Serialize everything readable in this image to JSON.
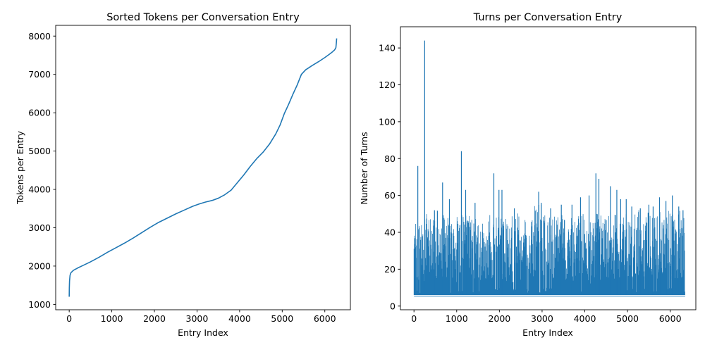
{
  "figure": {
    "background": "#ffffff",
    "line_color": "#1f77b4"
  },
  "chart_data": [
    {
      "type": "line",
      "title": "Sorted Tokens per Conversation Entry",
      "xlabel": "Entry Index",
      "ylabel": "Tokens per Entry",
      "xlim": [
        -317,
        6600
      ],
      "ylim": [
        860,
        8280
      ],
      "xticks": [
        0,
        1000,
        2000,
        3000,
        4000,
        5000,
        6000
      ],
      "yticks": [
        1000,
        2000,
        3000,
        4000,
        5000,
        6000,
        7000,
        8000
      ],
      "grid": false,
      "legend": null,
      "line_color": "#1f77b4",
      "points": [
        [
          0,
          1200
        ],
        [
          3,
          1430
        ],
        [
          8,
          1610
        ],
        [
          20,
          1760
        ],
        [
          40,
          1825
        ],
        [
          100,
          1890
        ],
        [
          200,
          1950
        ],
        [
          350,
          2030
        ],
        [
          500,
          2110
        ],
        [
          700,
          2230
        ],
        [
          900,
          2360
        ],
        [
          1100,
          2480
        ],
        [
          1300,
          2600
        ],
        [
          1500,
          2730
        ],
        [
          1700,
          2870
        ],
        [
          1900,
          3010
        ],
        [
          2100,
          3140
        ],
        [
          2300,
          3250
        ],
        [
          2500,
          3360
        ],
        [
          2700,
          3460
        ],
        [
          2900,
          3560
        ],
        [
          3050,
          3620
        ],
        [
          3200,
          3670
        ],
        [
          3350,
          3710
        ],
        [
          3500,
          3770
        ],
        [
          3650,
          3860
        ],
        [
          3800,
          3980
        ],
        [
          3950,
          4180
        ],
        [
          4100,
          4380
        ],
        [
          4250,
          4600
        ],
        [
          4400,
          4800
        ],
        [
          4550,
          4970
        ],
        [
          4700,
          5180
        ],
        [
          4850,
          5450
        ],
        [
          4950,
          5680
        ],
        [
          5050,
          5980
        ],
        [
          5150,
          6220
        ],
        [
          5250,
          6480
        ],
        [
          5350,
          6720
        ],
        [
          5450,
          7000
        ],
        [
          5550,
          7120
        ],
        [
          5700,
          7230
        ],
        [
          5850,
          7330
        ],
        [
          6000,
          7440
        ],
        [
          6100,
          7520
        ],
        [
          6180,
          7590
        ],
        [
          6230,
          7640
        ],
        [
          6260,
          7700
        ],
        [
          6270,
          7820
        ],
        [
          6278,
          7940
        ]
      ]
    },
    {
      "type": "line-dense",
      "title": "Turns per Conversation Entry",
      "xlabel": "Entry Index",
      "ylabel": "Number of Turns",
      "xlim": [
        -317,
        6600
      ],
      "ylim": [
        -2,
        151.5
      ],
      "xticks": [
        0,
        1000,
        2000,
        3000,
        4000,
        5000,
        6000
      ],
      "yticks": [
        0,
        20,
        40,
        60,
        80,
        100,
        120,
        140
      ],
      "grid": false,
      "legend": null,
      "line_color": "#1f77b4",
      "n_entries": 6350,
      "floor": 6,
      "envelope_step": 250,
      "envelope_max": [
        48,
        50,
        52,
        48,
        50,
        50,
        46,
        50,
        48,
        52,
        50,
        55,
        50,
        50,
        48,
        50,
        46,
        50,
        52,
        50,
        50,
        52,
        50,
        52,
        52,
        48
      ],
      "peaks": [
        [
          90,
          76
        ],
        [
          250,
          144
        ],
        [
          480,
          52
        ],
        [
          670,
          67
        ],
        [
          830,
          58
        ],
        [
          1110,
          84
        ],
        [
          1210,
          63
        ],
        [
          1430,
          56
        ],
        [
          1870,
          72
        ],
        [
          1990,
          63
        ],
        [
          2060,
          63
        ],
        [
          2350,
          53
        ],
        [
          2920,
          62
        ],
        [
          2980,
          56
        ],
        [
          3200,
          53
        ],
        [
          3450,
          55
        ],
        [
          3700,
          55
        ],
        [
          3900,
          59
        ],
        [
          4100,
          60
        ],
        [
          4260,
          72
        ],
        [
          4330,
          69
        ],
        [
          4600,
          65
        ],
        [
          4750,
          63
        ],
        [
          4840,
          58
        ],
        [
          4970,
          58
        ],
        [
          5100,
          54
        ],
        [
          5300,
          53
        ],
        [
          5500,
          55
        ],
        [
          5600,
          54
        ],
        [
          5750,
          59
        ],
        [
          5900,
          57
        ],
        [
          6050,
          60
        ],
        [
          6200,
          54
        ],
        [
          6300,
          52
        ]
      ],
      "seed": 42
    }
  ]
}
